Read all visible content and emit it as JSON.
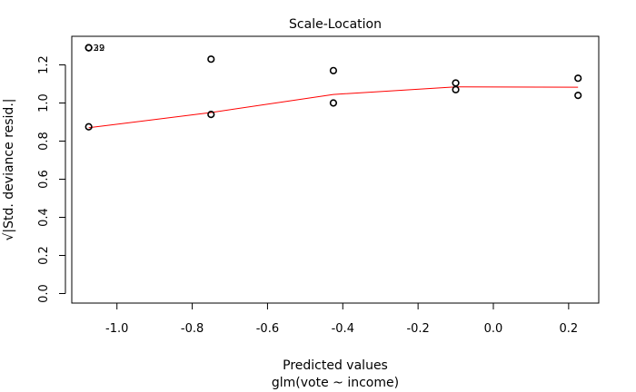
{
  "chart_data": {
    "type": "scatter",
    "title": "Scale-Location",
    "xlabel": "Predicted values",
    "xsublabel": "glm(vote ~ income)",
    "ylabel": "√|Std. deviance resid.|",
    "xlim": [
      -1.12,
      0.28
    ],
    "ylim": [
      -0.05,
      1.35
    ],
    "xticks": [
      -1.0,
      -0.8,
      -0.6,
      -0.4,
      -0.2,
      0.0,
      0.2
    ],
    "xtick_labels": [
      "-1.0",
      "-0.8",
      "-0.6",
      "-0.4",
      "-0.2",
      "0.0",
      "0.2"
    ],
    "yticks": [
      0.0,
      0.2,
      0.4,
      0.6,
      0.8,
      1.0,
      1.2
    ],
    "ytick_labels": [
      "0.0",
      "0.2",
      "0.4",
      "0.6",
      "0.8",
      "1.0",
      "1.2"
    ],
    "grid": false,
    "points": [
      {
        "x": -1.075,
        "y": 1.29,
        "label": "32"
      },
      {
        "x": -1.075,
        "y": 1.29,
        "label": "29"
      },
      {
        "x": -1.075,
        "y": 0.875
      },
      {
        "x": -0.75,
        "y": 1.23
      },
      {
        "x": -0.75,
        "y": 0.94
      },
      {
        "x": -0.425,
        "y": 1.17
      },
      {
        "x": -0.425,
        "y": 1.0
      },
      {
        "x": -0.1,
        "y": 1.105
      },
      {
        "x": -0.1,
        "y": 1.07
      },
      {
        "x": 0.225,
        "y": 1.13
      },
      {
        "x": 0.225,
        "y": 1.04
      }
    ],
    "smooth_line": {
      "color": "#ff0000",
      "x": [
        -1.075,
        -0.75,
        -0.425,
        -0.1,
        0.225
      ],
      "y": [
        0.87,
        0.95,
        1.045,
        1.085,
        1.083
      ]
    }
  }
}
